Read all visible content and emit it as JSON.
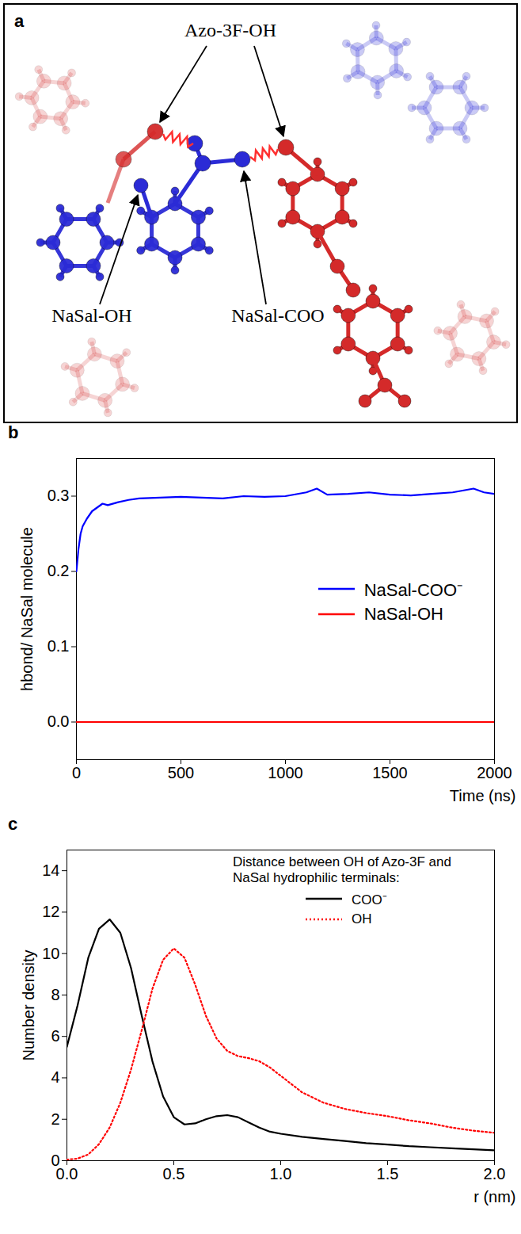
{
  "diagram": {
    "panel_label": "a",
    "labels": {
      "azo": "Azo-3F-OH",
      "nasal_oh": "NaSal-OH",
      "nasal_coo": "NaSal-COO"
    }
  },
  "chart_data": [
    {
      "panel_label": "b",
      "type": "line",
      "x_label": "Time (ns)",
      "y_label": "hbond/ NaSal molecule",
      "x": [
        0,
        10,
        20,
        30,
        50,
        75,
        100,
        125,
        150,
        200,
        250,
        300,
        400,
        500,
        600,
        700,
        800,
        900,
        1000,
        1100,
        1150,
        1200,
        1300,
        1400,
        1500,
        1600,
        1700,
        1800,
        1900,
        1950,
        2000
      ],
      "series": [
        {
          "name": "NaSal-COO⁻",
          "color": "#0000ff",
          "line_style": "solid",
          "values": [
            0.2,
            0.23,
            0.25,
            0.26,
            0.27,
            0.28,
            0.285,
            0.29,
            0.288,
            0.292,
            0.295,
            0.297,
            0.298,
            0.299,
            0.298,
            0.297,
            0.3,
            0.299,
            0.3,
            0.305,
            0.31,
            0.302,
            0.303,
            0.305,
            0.302,
            0.301,
            0.303,
            0.305,
            0.31,
            0.305,
            0.303
          ]
        },
        {
          "name": "NaSal-OH",
          "color": "#ff0000",
          "line_style": "solid",
          "values": [
            0,
            0,
            0,
            0,
            0,
            0,
            0,
            0,
            0,
            0,
            0,
            0,
            0,
            0,
            0,
            0,
            0,
            0,
            0,
            0,
            0,
            0,
            0,
            0,
            0,
            0,
            0,
            0,
            0,
            0,
            0
          ]
        }
      ],
      "xlim": [
        0,
        2000
      ],
      "xticks": [
        0,
        500,
        1000,
        1500,
        2000
      ],
      "ylim": [
        -0.05,
        0.35
      ],
      "yticks": [
        {
          "value": 0,
          "label": "0.0"
        },
        {
          "value": 0.1,
          "label": "0.1"
        },
        {
          "value": 0.2,
          "label": "0.2"
        },
        {
          "value": 0.3,
          "label": "0.3"
        }
      ],
      "legend": "right"
    },
    {
      "panel_label": "c",
      "type": "line",
      "x_label": "r (nm)",
      "y_label": "Number density",
      "legend_title": "Distance between OH of Azo-3F and NaSal hydrophilic terminals:",
      "x": [
        0,
        0.05,
        0.1,
        0.15,
        0.2,
        0.25,
        0.3,
        0.35,
        0.4,
        0.45,
        0.5,
        0.55,
        0.6,
        0.65,
        0.7,
        0.75,
        0.8,
        0.85,
        0.9,
        0.95,
        1.0,
        1.1,
        1.2,
        1.3,
        1.4,
        1.5,
        1.6,
        1.7,
        1.8,
        1.9,
        2.0
      ],
      "series": [
        {
          "name": "COO⁻",
          "color": "#000000",
          "line_style": "solid",
          "values": [
            5.5,
            7.5,
            9.8,
            11.2,
            11.65,
            11.0,
            9.3,
            7.0,
            4.8,
            3.1,
            2.1,
            1.75,
            1.8,
            2.0,
            2.15,
            2.2,
            2.1,
            1.85,
            1.6,
            1.4,
            1.3,
            1.15,
            1.05,
            0.95,
            0.85,
            0.78,
            0.7,
            0.65,
            0.6,
            0.55,
            0.5
          ]
        },
        {
          "name": "OH",
          "color": "#ff0000",
          "line_style": "dotted",
          "values": [
            0.05,
            0.1,
            0.3,
            0.8,
            1.6,
            2.8,
            4.4,
            6.3,
            8.3,
            9.7,
            10.25,
            9.8,
            8.5,
            7.0,
            5.9,
            5.3,
            5.05,
            4.95,
            4.8,
            4.5,
            4.1,
            3.3,
            2.8,
            2.5,
            2.3,
            2.15,
            1.95,
            1.8,
            1.6,
            1.45,
            1.35
          ]
        }
      ],
      "xlim": [
        0,
        2.0
      ],
      "xticks": [
        {
          "value": 0,
          "label": "0.0"
        },
        {
          "value": 0.5,
          "label": "0.5"
        },
        {
          "value": 1.0,
          "label": "1.0"
        },
        {
          "value": 1.5,
          "label": "1.5"
        },
        {
          "value": 2.0,
          "label": "2.0"
        }
      ],
      "ylim": [
        0,
        15
      ],
      "yticks": [
        0,
        2,
        4,
        6,
        8,
        10,
        12,
        14
      ],
      "legend": "top-right"
    }
  ]
}
